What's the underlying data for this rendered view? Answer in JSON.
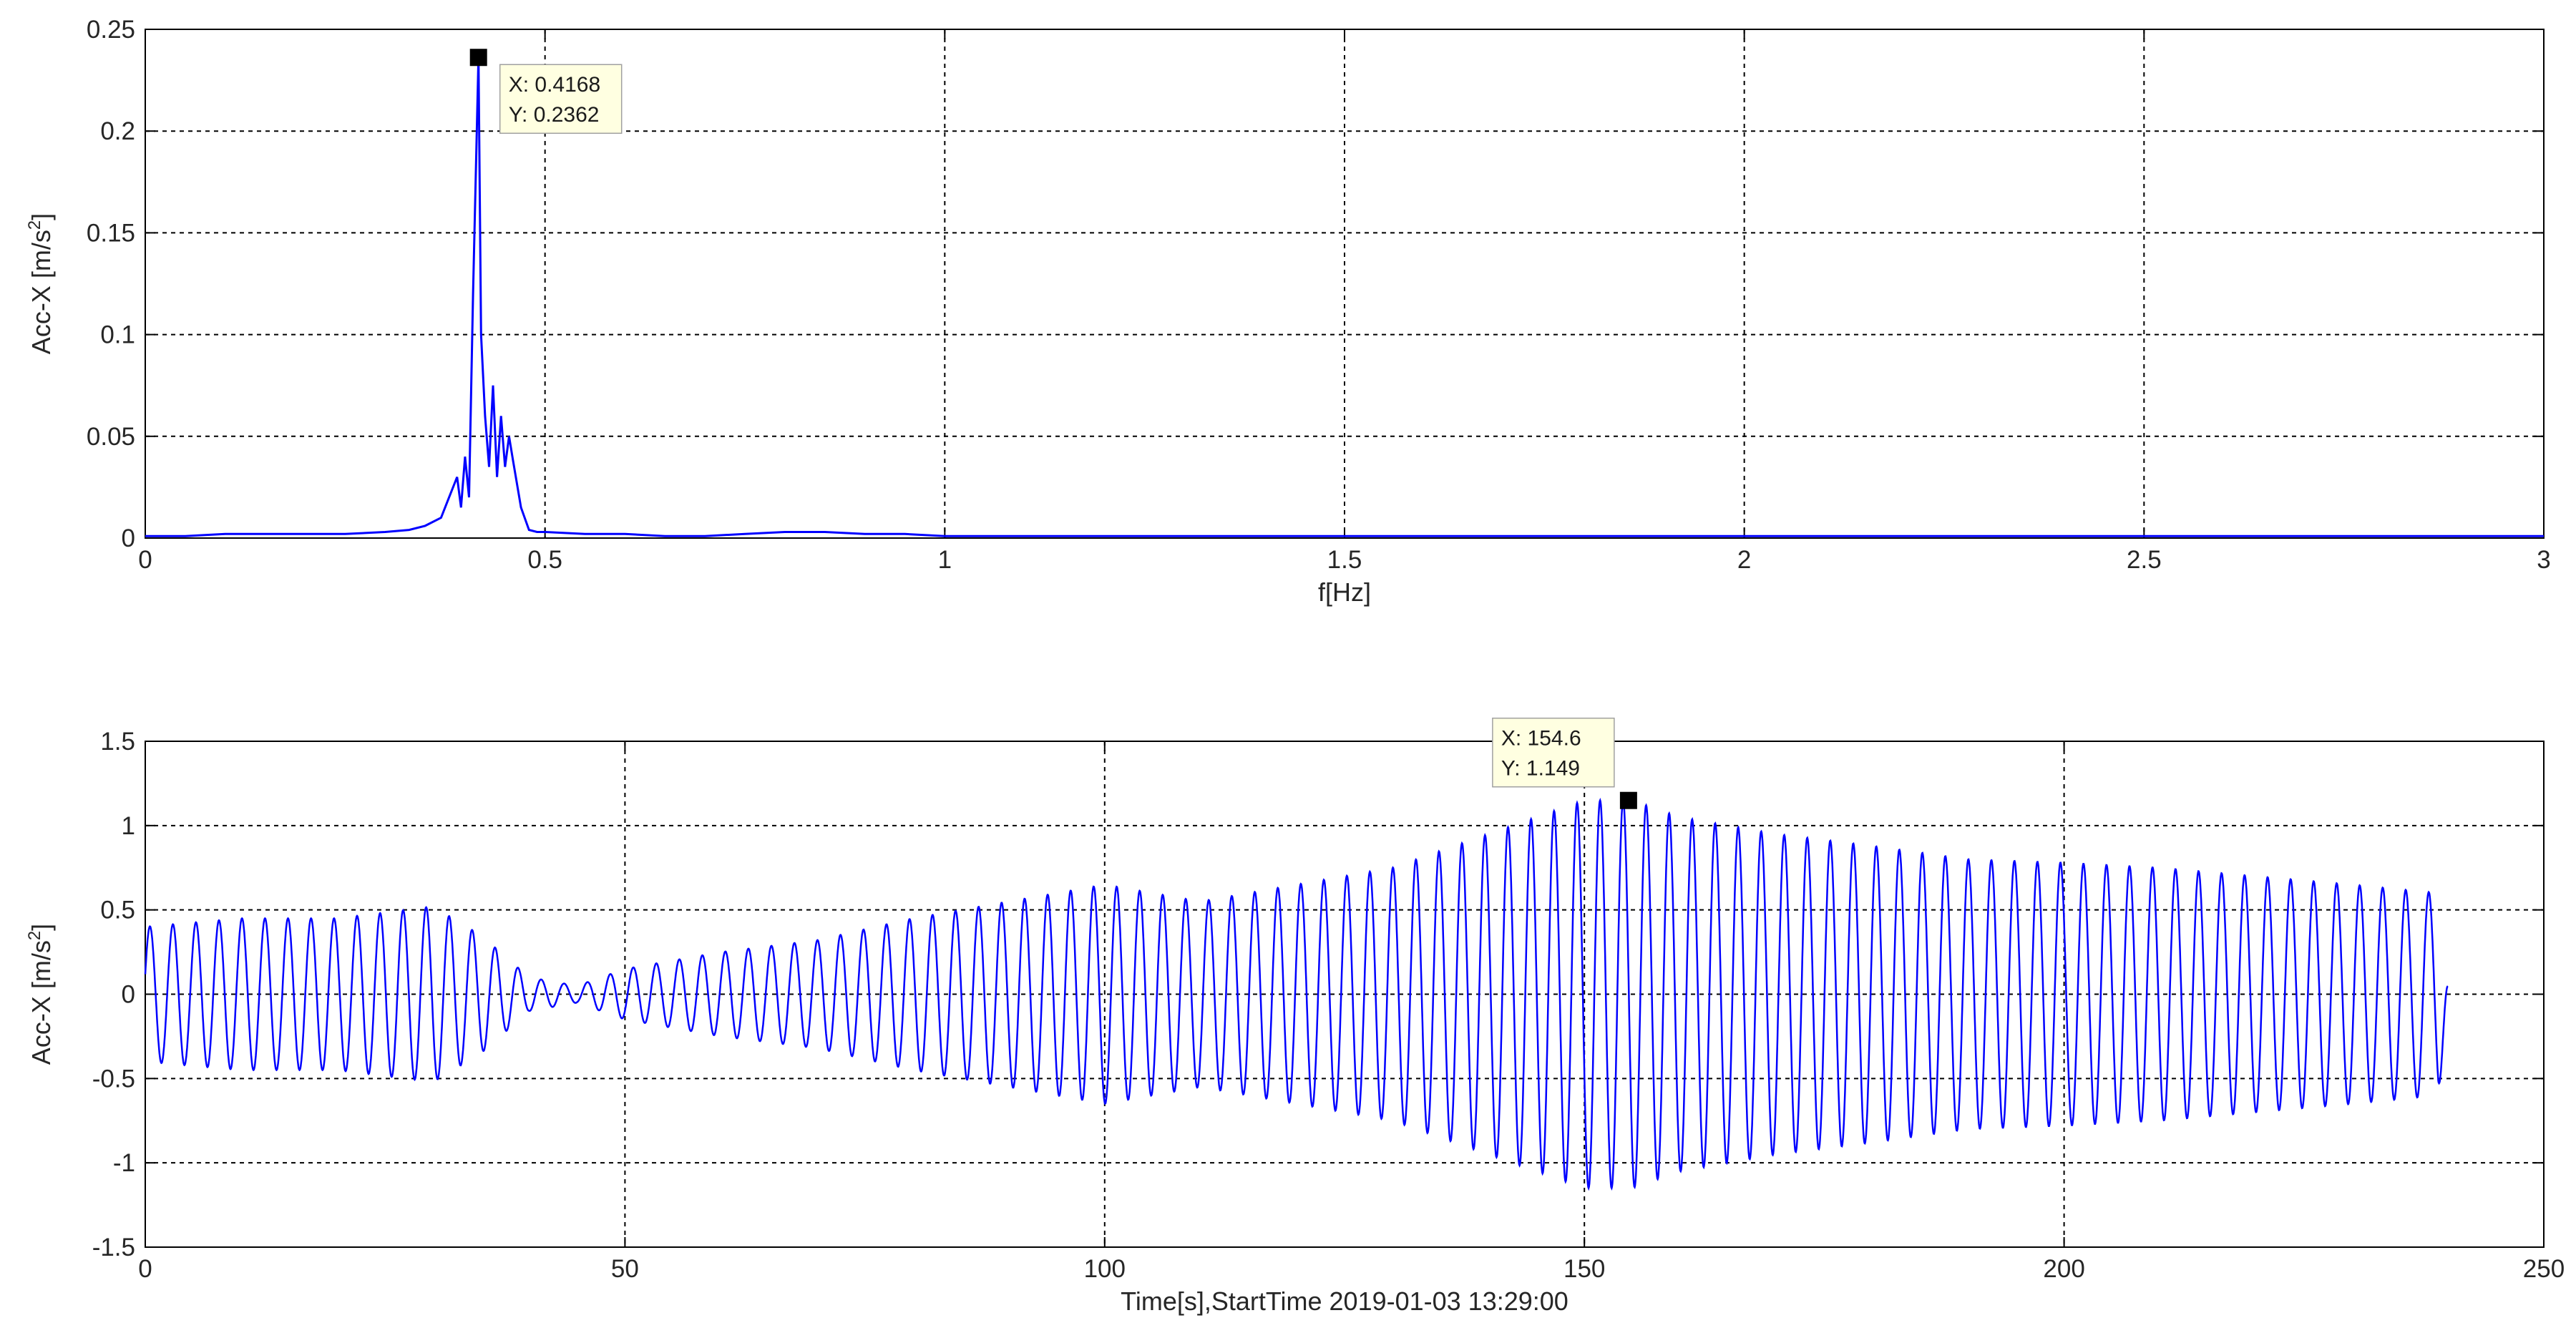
{
  "chart_data": [
    {
      "type": "line",
      "xlabel": "f[Hz]",
      "ylabel": "Acc-X [m/s",
      "ylabel_sup": "2",
      "ylabel_close": "]",
      "xlim": [
        0,
        3
      ],
      "ylim": [
        0,
        0.25
      ],
      "xticks": [
        0,
        0.5,
        1,
        1.5,
        2,
        2.5,
        3
      ],
      "yticks": [
        0,
        0.05,
        0.1,
        0.15,
        0.2,
        0.25
      ],
      "xtick_labels": [
        "0",
        "0.5",
        "1",
        "1.5",
        "2",
        "2.5",
        "3"
      ],
      "ytick_labels": [
        "0",
        "0.05",
        "0.1",
        "0.15",
        "0.2",
        "0.25"
      ],
      "grid": true,
      "line_color": "#0000ff",
      "series": [
        {
          "x": [
            0,
            0.05,
            0.1,
            0.15,
            0.2,
            0.25,
            0.3,
            0.33,
            0.35,
            0.37,
            0.38,
            0.39,
            0.395,
            0.4,
            0.405,
            0.41,
            0.4168,
            0.42,
            0.425,
            0.43,
            0.435,
            0.44,
            0.445,
            0.45,
            0.455,
            0.46,
            0.47,
            0.48,
            0.49,
            0.5,
            0.55,
            0.6,
            0.65,
            0.7,
            0.75,
            0.8,
            0.85,
            0.9,
            0.95,
            1.0,
            1.5,
            2.0,
            2.5,
            3.0
          ],
          "y": [
            0.001,
            0.001,
            0.002,
            0.002,
            0.002,
            0.002,
            0.003,
            0.004,
            0.006,
            0.01,
            0.02,
            0.03,
            0.015,
            0.04,
            0.02,
            0.12,
            0.2362,
            0.1,
            0.06,
            0.035,
            0.075,
            0.03,
            0.06,
            0.035,
            0.05,
            0.038,
            0.015,
            0.004,
            0.003,
            0.003,
            0.002,
            0.002,
            0.001,
            0.001,
            0.002,
            0.003,
            0.003,
            0.002,
            0.002,
            0.001,
            0.001,
            0.001,
            0.001,
            0.001
          ]
        }
      ],
      "datatip": {
        "x_text": "X: 0.4168",
        "y_text": "Y: 0.2362",
        "x": 0.4168,
        "y": 0.2362
      }
    },
    {
      "type": "line",
      "xlabel": "Time[s],StartTime 2019-01-03 13:29:00",
      "ylabel": "Acc-X [m/s",
      "ylabel_sup": "2",
      "ylabel_close": "]",
      "xlim": [
        0,
        250
      ],
      "ylim": [
        -1.5,
        1.5
      ],
      "xticks": [
        0,
        50,
        100,
        150,
        200,
        250
      ],
      "yticks": [
        -1.5,
        -1,
        -0.5,
        0,
        0.5,
        1,
        1.5
      ],
      "xtick_labels": [
        "0",
        "50",
        "100",
        "150",
        "200",
        "250"
      ],
      "ytick_labels": [
        "-1.5",
        "-1",
        "-0.5",
        "0",
        "0.5",
        "1",
        "1.5"
      ],
      "grid": true,
      "line_color": "#0000ff",
      "signal": {
        "frequency_hz": 0.4168,
        "duration_s": 240,
        "envelope_t": [
          0,
          10,
          20,
          30,
          35,
          40,
          45,
          50,
          60,
          70,
          80,
          90,
          100,
          110,
          120,
          130,
          140,
          150,
          155,
          160,
          170,
          180,
          190,
          200,
          210,
          220,
          230,
          239,
          240
        ],
        "envelope_a": [
          0.4,
          0.45,
          0.45,
          0.52,
          0.35,
          0.1,
          0.05,
          0.15,
          0.25,
          0.32,
          0.45,
          0.55,
          0.65,
          0.55,
          0.65,
          0.75,
          0.95,
          1.15,
          1.149,
          1.05,
          0.95,
          0.88,
          0.8,
          0.78,
          0.75,
          0.7,
          0.65,
          0.6,
          0.1
        ]
      },
      "datatip": {
        "x_text": "X: 154.6",
        "y_text": "Y: 1.149",
        "x": 154.6,
        "y": 1.149
      }
    }
  ]
}
